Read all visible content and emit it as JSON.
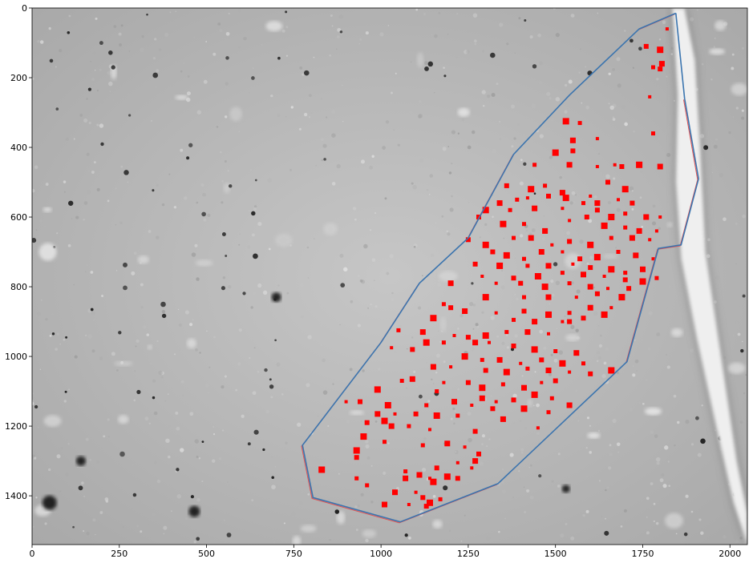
{
  "axes": {
    "x_ticks": [
      "0",
      "250",
      "500",
      "750",
      "1000",
      "1250",
      "1500",
      "1750",
      "2000"
    ],
    "y_ticks": [
      "0",
      "200",
      "400",
      "600",
      "800",
      "1000",
      "1200",
      "1400"
    ],
    "x_range": [
      0,
      2050
    ],
    "y_range": [
      1540,
      0
    ]
  },
  "colors": {
    "polygon_outline": "#3b75af",
    "polygon_inner": "#e05050",
    "detection_marker": "#ff0000",
    "image_background": "#b8b8b8"
  },
  "image_description_shapes": {
    "vessel_channel_present": true,
    "dark_nuclei_present": true
  },
  "region_polygon": [
    [
      1845,
      15
    ],
    [
      1740,
      60
    ],
    [
      1540,
      250
    ],
    [
      1380,
      420
    ],
    [
      1250,
      660
    ],
    [
      1110,
      790
    ],
    [
      1000,
      960
    ],
    [
      775,
      1255
    ],
    [
      805,
      1405
    ],
    [
      1055,
      1475
    ],
    [
      1335,
      1365
    ],
    [
      1705,
      1015
    ],
    [
      1795,
      690
    ],
    [
      1860,
      680
    ],
    [
      1910,
      490
    ],
    [
      1870,
      260
    ]
  ],
  "detections": [
    [
      1820,
      60
    ],
    [
      1760,
      110
    ],
    [
      1800,
      120
    ],
    [
      1780,
      170
    ],
    [
      1805,
      160
    ],
    [
      1770,
      255
    ],
    [
      1800,
      175
    ],
    [
      1530,
      325
    ],
    [
      1570,
      330
    ],
    [
      1550,
      380
    ],
    [
      1620,
      375
    ],
    [
      1550,
      410
    ],
    [
      1500,
      415
    ],
    [
      1440,
      450
    ],
    [
      1540,
      450
    ],
    [
      1620,
      455
    ],
    [
      1690,
      455
    ],
    [
      1740,
      450
    ],
    [
      1780,
      360
    ],
    [
      1800,
      455
    ],
    [
      1670,
      450
    ],
    [
      1360,
      510
    ],
    [
      1430,
      520
    ],
    [
      1470,
      510
    ],
    [
      1520,
      530
    ],
    [
      1600,
      540
    ],
    [
      1650,
      500
    ],
    [
      1700,
      520
    ],
    [
      1390,
      550
    ],
    [
      1340,
      560
    ],
    [
      1420,
      545
    ],
    [
      1480,
      540
    ],
    [
      1530,
      545
    ],
    [
      1580,
      560
    ],
    [
      1620,
      560
    ],
    [
      1680,
      550
    ],
    [
      1720,
      560
    ],
    [
      1300,
      580
    ],
    [
      1370,
      580
    ],
    [
      1440,
      575
    ],
    [
      1520,
      575
    ],
    [
      1620,
      580
    ],
    [
      1660,
      600
    ],
    [
      1700,
      590
    ],
    [
      1760,
      600
    ],
    [
      1800,
      600
    ],
    [
      1280,
      600
    ],
    [
      1350,
      620
    ],
    [
      1410,
      620
    ],
    [
      1470,
      640
    ],
    [
      1540,
      610
    ],
    [
      1590,
      600
    ],
    [
      1640,
      625
    ],
    [
      1700,
      630
    ],
    [
      1740,
      640
    ],
    [
      1790,
      640
    ],
    [
      1250,
      665
    ],
    [
      1300,
      680
    ],
    [
      1380,
      660
    ],
    [
      1430,
      660
    ],
    [
      1490,
      680
    ],
    [
      1540,
      670
    ],
    [
      1600,
      680
    ],
    [
      1660,
      660
    ],
    [
      1720,
      660
    ],
    [
      1770,
      665
    ],
    [
      1320,
      700
    ],
    [
      1360,
      710
    ],
    [
      1410,
      720
    ],
    [
      1460,
      700
    ],
    [
      1520,
      700
    ],
    [
      1570,
      720
    ],
    [
      1620,
      715
    ],
    [
      1680,
      700
    ],
    [
      1730,
      710
    ],
    [
      1780,
      720
    ],
    [
      1270,
      735
    ],
    [
      1340,
      740
    ],
    [
      1420,
      740
    ],
    [
      1480,
      740
    ],
    [
      1550,
      735
    ],
    [
      1600,
      745
    ],
    [
      1660,
      750
    ],
    [
      1700,
      760
    ],
    [
      1750,
      750
    ],
    [
      1290,
      770
    ],
    [
      1380,
      775
    ],
    [
      1450,
      770
    ],
    [
      1520,
      760
    ],
    [
      1580,
      765
    ],
    [
      1640,
      770
    ],
    [
      1700,
      780
    ],
    [
      1750,
      785
    ],
    [
      1790,
      775
    ],
    [
      1200,
      790
    ],
    [
      1330,
      790
    ],
    [
      1400,
      790
    ],
    [
      1470,
      800
    ],
    [
      1540,
      790
    ],
    [
      1600,
      800
    ],
    [
      1650,
      805
    ],
    [
      1710,
      805
    ],
    [
      1300,
      830
    ],
    [
      1410,
      830
    ],
    [
      1480,
      830
    ],
    [
      1560,
      830
    ],
    [
      1620,
      820
    ],
    [
      1690,
      830
    ],
    [
      1180,
      850
    ],
    [
      1240,
      870
    ],
    [
      1330,
      875
    ],
    [
      1410,
      870
    ],
    [
      1480,
      880
    ],
    [
      1540,
      875
    ],
    [
      1600,
      860
    ],
    [
      1660,
      860
    ],
    [
      1200,
      860
    ],
    [
      1150,
      890
    ],
    [
      1380,
      895
    ],
    [
      1440,
      900
    ],
    [
      1520,
      900
    ],
    [
      1580,
      890
    ],
    [
      1640,
      880
    ],
    [
      1050,
      925
    ],
    [
      1120,
      930
    ],
    [
      1210,
      940
    ],
    [
      1250,
      945
    ],
    [
      1300,
      940
    ],
    [
      1360,
      930
    ],
    [
      1420,
      930
    ],
    [
      1480,
      935
    ],
    [
      1540,
      900
    ],
    [
      1130,
      960
    ],
    [
      1180,
      960
    ],
    [
      1270,
      960
    ],
    [
      1310,
      960
    ],
    [
      1380,
      970
    ],
    [
      1440,
      980
    ],
    [
      1500,
      985
    ],
    [
      1560,
      990
    ],
    [
      1030,
      975
    ],
    [
      1090,
      980
    ],
    [
      1240,
      1000
    ],
    [
      1290,
      1010
    ],
    [
      1340,
      1010
    ],
    [
      1400,
      1020
    ],
    [
      1460,
      1010
    ],
    [
      1520,
      1020
    ],
    [
      1580,
      1020
    ],
    [
      1150,
      1030
    ],
    [
      1200,
      1030
    ],
    [
      1300,
      1040
    ],
    [
      1360,
      1045
    ],
    [
      1420,
      1035
    ],
    [
      1480,
      1040
    ],
    [
      1540,
      1045
    ],
    [
      1600,
      1050
    ],
    [
      1660,
      1040
    ],
    [
      1060,
      1070
    ],
    [
      1090,
      1065
    ],
    [
      1180,
      1075
    ],
    [
      1250,
      1075
    ],
    [
      1290,
      1090
    ],
    [
      1350,
      1080
    ],
    [
      1410,
      1090
    ],
    [
      1460,
      1075
    ],
    [
      1500,
      1070
    ],
    [
      990,
      1095
    ],
    [
      1160,
      1100
    ],
    [
      1290,
      1120
    ],
    [
      1330,
      1130
    ],
    [
      1380,
      1125
    ],
    [
      1440,
      1110
    ],
    [
      1490,
      1120
    ],
    [
      1540,
      1140
    ],
    [
      900,
      1130
    ],
    [
      940,
      1130
    ],
    [
      1020,
      1140
    ],
    [
      1130,
      1140
    ],
    [
      1210,
      1130
    ],
    [
      1260,
      1140
    ],
    [
      1320,
      1150
    ],
    [
      1410,
      1150
    ],
    [
      1480,
      1160
    ],
    [
      990,
      1165
    ],
    [
      1040,
      1165
    ],
    [
      1100,
      1165
    ],
    [
      1160,
      1170
    ],
    [
      1220,
      1170
    ],
    [
      1350,
      1180
    ],
    [
      1450,
      1205
    ],
    [
      960,
      1190
    ],
    [
      1010,
      1185
    ],
    [
      1080,
      1200
    ],
    [
      1030,
      1200
    ],
    [
      1140,
      1210
    ],
    [
      1270,
      1215
    ],
    [
      950,
      1230
    ],
    [
      1010,
      1245
    ],
    [
      1190,
      1250
    ],
    [
      1240,
      1260
    ],
    [
      1280,
      1280
    ],
    [
      930,
      1270
    ],
    [
      1120,
      1255
    ],
    [
      1270,
      1300
    ],
    [
      1220,
      1305
    ],
    [
      930,
      1290
    ],
    [
      830,
      1325
    ],
    [
      1070,
      1330
    ],
    [
      1110,
      1340
    ],
    [
      1260,
      1320
    ],
    [
      1160,
      1320
    ],
    [
      1190,
      1345
    ],
    [
      930,
      1350
    ],
    [
      1070,
      1350
    ],
    [
      1140,
      1350
    ],
    [
      1220,
      1350
    ],
    [
      1150,
      1360
    ],
    [
      960,
      1370
    ],
    [
      1040,
      1390
    ],
    [
      1100,
      1390
    ],
    [
      1120,
      1405
    ],
    [
      1140,
      1420
    ],
    [
      1170,
      1410
    ],
    [
      1010,
      1425
    ],
    [
      1080,
      1425
    ],
    [
      1130,
      1430
    ]
  ]
}
